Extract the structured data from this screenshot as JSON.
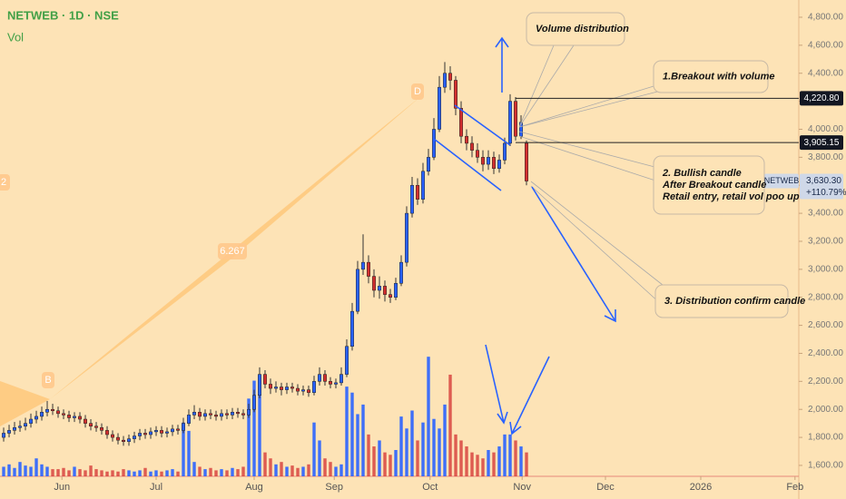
{
  "chart_data": {
    "type": "candlestick",
    "title": "NETWEB · 1D · NSE",
    "up_color": "#2962ff",
    "down_color": "#d32f2f",
    "xlim": [
      -0.67,
      146
    ],
    "xticks": [
      {
        "value": 10.7,
        "label": "Jun"
      },
      {
        "value": 28,
        "label": "Jul"
      },
      {
        "value": 46,
        "label": "Aug"
      },
      {
        "value": 60.7,
        "label": "Sep"
      },
      {
        "value": 78.3,
        "label": "Oct"
      },
      {
        "value": 95.2,
        "label": "Nov"
      },
      {
        "value": 110.5,
        "label": "Dec"
      },
      {
        "value": 128,
        "label": "2026"
      },
      {
        "value": 145.3,
        "label": "Feb"
      }
    ],
    "ylim": [
      1522,
      4923
    ],
    "yticks": [
      {
        "value": 1600,
        "label": "1,600.00"
      },
      {
        "value": 1800,
        "label": "1,800.00"
      },
      {
        "value": 2000,
        "label": "2,000.00"
      },
      {
        "value": 2200,
        "label": "2,200.00"
      },
      {
        "value": 2400,
        "label": "2,400.00"
      },
      {
        "value": 2600,
        "label": "2,600.00"
      },
      {
        "value": 2800,
        "label": "2,800.00"
      },
      {
        "value": 3000,
        "label": "3,000.00"
      },
      {
        "value": 3200,
        "label": "3,200.00"
      },
      {
        "value": 3400,
        "label": "3,400.00"
      },
      {
        "value": 3600,
        "label": "3,600.00"
      },
      {
        "value": 3800,
        "label": "3,800.00"
      },
      {
        "value": 4000,
        "label": "4,000.00"
      },
      {
        "value": 4200,
        "label": "4,200.00"
      },
      {
        "value": 4400,
        "label": "4,400.00"
      },
      {
        "value": 4600,
        "label": "4,600.00"
      },
      {
        "value": 4800,
        "label": "4,800.00"
      }
    ],
    "open": [
      1800,
      1830,
      1850,
      1870,
      1880,
      1900,
      1930,
      1950,
      1980,
      2000,
      1990,
      1970,
      1960,
      1940,
      1950,
      1930,
      1900,
      1880,
      1870,
      1850,
      1820,
      1800,
      1780,
      1770,
      1790,
      1810,
      1830,
      1820,
      1840,
      1850,
      1830,
      1840,
      1860,
      1850,
      1900,
      1960,
      1980,
      1950,
      1970,
      1960,
      1950,
      1970,
      1960,
      1980,
      1970,
      1960,
      2000,
      2100,
      2250,
      2180,
      2150,
      2160,
      2140,
      2160,
      2150,
      2130,
      2140,
      2120,
      2200,
      2250,
      2200,
      2180,
      2190,
      2250,
      2450,
      2700,
      3000,
      3050,
      2950,
      2850,
      2880,
      2820,
      2800,
      2900,
      3050,
      3400,
      3600,
      3500,
      3700,
      3800,
      4000,
      4300,
      4400,
      4350,
      4150,
      3950,
      3900,
      3850,
      3800,
      3750,
      3800,
      3720,
      3780,
      3900,
      4200,
      3950,
      3900
    ],
    "high": [
      1870,
      1890,
      1910,
      1920,
      1940,
      1970,
      1990,
      2020,
      2060,
      2040,
      2020,
      2000,
      1990,
      1980,
      1980,
      1960,
      1930,
      1910,
      1900,
      1880,
      1850,
      1830,
      1810,
      1820,
      1840,
      1860,
      1860,
      1870,
      1880,
      1880,
      1870,
      1890,
      1890,
      1940,
      2000,
      2030,
      2010,
      2000,
      2000,
      1990,
      2000,
      2000,
      2010,
      2010,
      2000,
      2040,
      2140,
      2300,
      2280,
      2220,
      2200,
      2190,
      2190,
      2190,
      2180,
      2170,
      2170,
      2240,
      2300,
      2280,
      2230,
      2220,
      2300,
      2500,
      2760,
      3060,
      3250,
      3100,
      3000,
      2950,
      2920,
      2860,
      2940,
      3100,
      3450,
      3660,
      3650,
      3760,
      3860,
      4080,
      4380,
      4480,
      4450,
      4380,
      4200,
      4000,
      3950,
      3900,
      3850,
      3850,
      3840,
      3820,
      3940,
      4250,
      4230,
      4100,
      3920
    ],
    "low": [
      1770,
      1800,
      1820,
      1840,
      1850,
      1870,
      1900,
      1920,
      1950,
      1960,
      1940,
      1930,
      1910,
      1910,
      1900,
      1870,
      1850,
      1840,
      1820,
      1790,
      1770,
      1750,
      1740,
      1740,
      1760,
      1780,
      1790,
      1790,
      1810,
      1800,
      1800,
      1810,
      1820,
      1830,
      1880,
      1930,
      1920,
      1920,
      1930,
      1920,
      1920,
      1930,
      1930,
      1940,
      1930,
      1940,
      1980,
      2080,
      2150,
      2110,
      2120,
      2100,
      2110,
      2120,
      2100,
      2100,
      2090,
      2100,
      2170,
      2170,
      2150,
      2150,
      2170,
      2230,
      2420,
      2680,
      2960,
      2900,
      2800,
      2790,
      2770,
      2760,
      2780,
      2880,
      3020,
      3370,
      3460,
      3470,
      3670,
      3780,
      3980,
      4260,
      4280,
      4100,
      3900,
      3850,
      3800,
      3760,
      3700,
      3710,
      3680,
      3690,
      3750,
      3880,
      3920,
      3930,
      3600
    ],
    "close": [
      1830,
      1850,
      1870,
      1880,
      1900,
      1930,
      1950,
      1980,
      2000,
      1990,
      1970,
      1960,
      1940,
      1950,
      1930,
      1900,
      1880,
      1870,
      1850,
      1820,
      1800,
      1780,
      1770,
      1790,
      1810,
      1830,
      1820,
      1840,
      1850,
      1830,
      1840,
      1860,
      1850,
      1900,
      1960,
      1980,
      1950,
      1970,
      1960,
      1950,
      1970,
      1960,
      1980,
      1970,
      1960,
      2000,
      2100,
      2250,
      2180,
      2150,
      2160,
      2140,
      2160,
      2150,
      2130,
      2140,
      2120,
      2200,
      2250,
      2200,
      2180,
      2190,
      2250,
      2450,
      2700,
      3000,
      3050,
      2950,
      2850,
      2880,
      2820,
      2800,
      2900,
      3050,
      3400,
      3600,
      3500,
      3700,
      3800,
      4000,
      4300,
      4400,
      4350,
      4150,
      3950,
      3900,
      3850,
      3800,
      3750,
      3800,
      3720,
      3780,
      3900,
      4200,
      3950,
      4050,
      3630.3
    ],
    "volume": {
      "label": "Vol",
      "ylim": [
        0,
        110
      ],
      "values": [
        8,
        10,
        7,
        12,
        9,
        8,
        15,
        10,
        8,
        6,
        6,
        7,
        5,
        8,
        6,
        5,
        9,
        6,
        5,
        4,
        5,
        4,
        6,
        5,
        4,
        5,
        7,
        4,
        5,
        4,
        5,
        6,
        4,
        45,
        38,
        12,
        8,
        6,
        7,
        5,
        6,
        5,
        7,
        6,
        8,
        65,
        80,
        85,
        20,
        15,
        10,
        12,
        8,
        9,
        7,
        8,
        10,
        45,
        30,
        15,
        12,
        8,
        10,
        75,
        70,
        52,
        60,
        35,
        25,
        30,
        20,
        18,
        22,
        50,
        40,
        55,
        30,
        45,
        100,
        48,
        40,
        60,
        85,
        35,
        30,
        25,
        20,
        18,
        15,
        22,
        20,
        25,
        35,
        35,
        30,
        25,
        20
      ]
    },
    "price_lines": [
      {
        "value": 4220.8,
        "label": "4,220.80"
      },
      {
        "value": 3905.15,
        "label": "3,905.15"
      }
    ],
    "last_price": {
      "symbol": "NETWEB",
      "label": "3,630.30",
      "change": "+110.79%"
    },
    "annotations": [
      [
        "Volume distribution"
      ],
      [
        "1.Breakout with volume"
      ],
      [
        "2. Bullish candle",
        "After Breakout candle",
        "Retail entry, retail vol poo up"
      ],
      [
        "3. Distribution confirm candle"
      ]
    ],
    "pattern_labels": [
      "D",
      "6.267",
      "B",
      "2"
    ]
  }
}
